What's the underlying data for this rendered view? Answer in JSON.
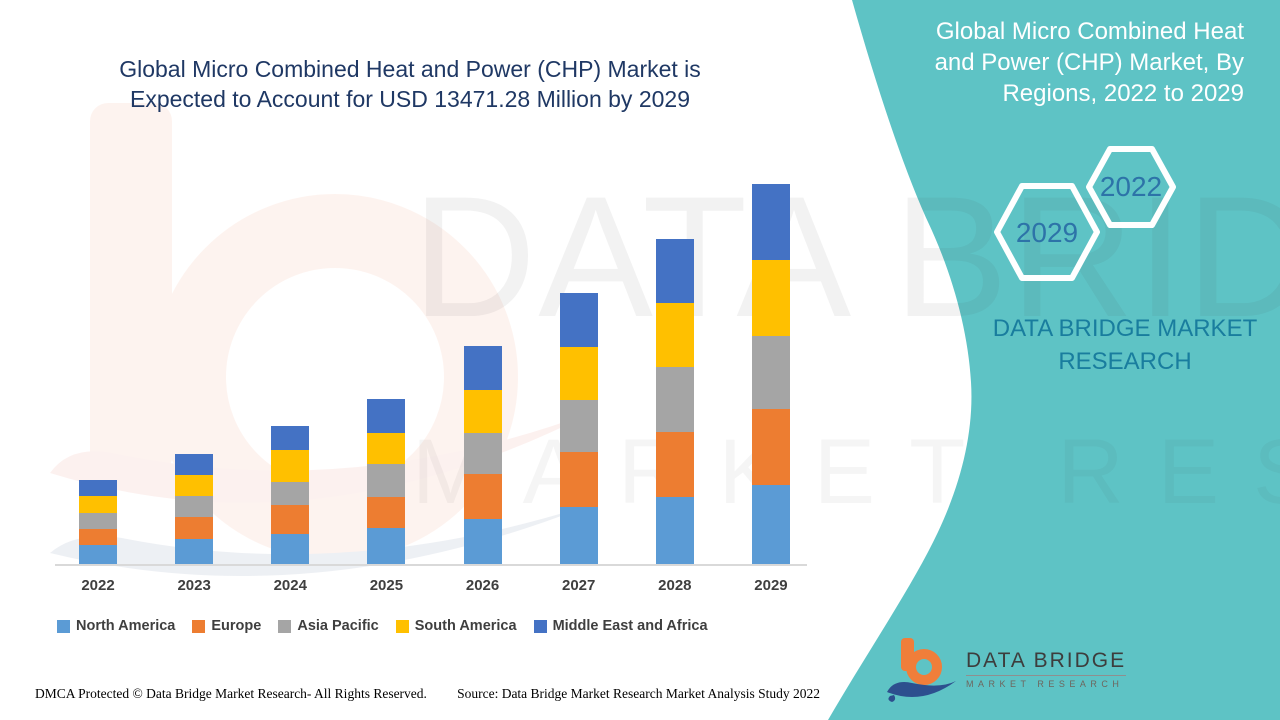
{
  "title": {
    "line1": "Global Micro Combined Heat and Power (CHP) Market is",
    "line2": "Expected to Account for USD 13471.28 Million by 2029"
  },
  "side_panel": {
    "heading_line1": "Global Micro Combined Heat",
    "heading_line2": "and Power (CHP) Market, By",
    "heading_line3": "Regions, 2022 to 2029",
    "hexagon_large_label": "2029",
    "hexagon_small_label": "2022",
    "brand_line1": "DATA BRIDGE MARKET",
    "brand_line2": "RESEARCH"
  },
  "chart_data": {
    "type": "bar",
    "stacked": true,
    "values_unit": "USD Million",
    "categories": [
      "2022",
      "2023",
      "2024",
      "2025",
      "2026",
      "2027",
      "2028",
      "2029"
    ],
    "series": [
      {
        "name": "North America",
        "color": "#5b9bd5",
        "values": [
          675,
          890,
          1065,
          1280,
          1600,
          2025,
          2380,
          2808.28
        ]
      },
      {
        "name": "Europe",
        "color": "#ed7d31",
        "values": [
          570,
          780,
          1030,
          1100,
          1600,
          1955,
          2310,
          2700
        ]
      },
      {
        "name": "Asia Pacific",
        "color": "#a5a5a5",
        "values": [
          570,
          745,
          820,
          1170,
          1455,
          1850,
          2310,
          2595
        ]
      },
      {
        "name": "South America",
        "color": "#ffc000",
        "values": [
          600,
          745,
          1135,
          1100,
          1530,
          1885,
          2275,
          2700
        ]
      },
      {
        "name": "Middle East and Africa",
        "color": "#4472c4",
        "values": [
          570,
          745,
          855,
          1210,
          1565,
          1920,
          2275,
          2668
        ]
      }
    ],
    "totals": [
      2985,
      3905,
      4905,
      5860,
      7750,
      9635,
      11550,
      13471.28
    ],
    "title": "Global Micro Combined Heat and Power (CHP) Market, By Regions, 2022 to 2029",
    "xlabel": "",
    "ylabel": "",
    "y_axis_visible": false,
    "grid": false,
    "legend_position": "bottom"
  },
  "watermark": {
    "line1": "DATA BRIDGE",
    "line2": "MARKET RESEARCH"
  },
  "footer": {
    "left": "DMCA Protected © Data Bridge Market Research- All Rights Reserved.",
    "right": "Source: Data Bridge Market Research Market Analysis Study 2022"
  },
  "logo": {
    "title": "DATA BRIDGE",
    "subtitle": "MARKET RESEARCH"
  },
  "colors": {
    "teal_panel": "#5ec3c5",
    "title_navy": "#1f3864",
    "hexagon_number_blue": "#2d73a8",
    "panel_brand_teal": "#197d9e",
    "axis_line_gray": "#d9d9d9"
  }
}
